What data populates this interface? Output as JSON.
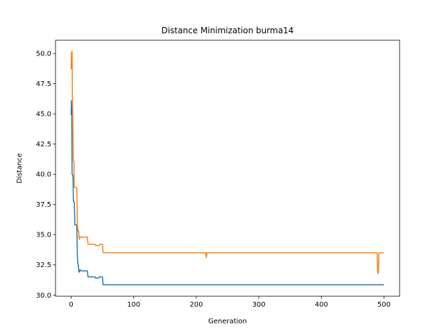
{
  "chart_data": {
    "type": "line",
    "title": "Distance Minimization burma14",
    "xlabel": "Generation",
    "ylabel": "Distance",
    "xlim": [
      -25,
      525
    ],
    "ylim": [
      29.9,
      51.1
    ],
    "x_ticks": [
      0,
      100,
      200,
      300,
      400,
      500
    ],
    "y_ticks": [
      30.0,
      32.5,
      35.0,
      37.5,
      40.0,
      42.5,
      45.0,
      47.5,
      50.0
    ],
    "grid": false,
    "legend": "none",
    "series": [
      {
        "color": "#1f77b4",
        "points": [
          [
            0,
            44.9
          ],
          [
            0.5,
            46.1
          ],
          [
            1,
            44.9
          ],
          [
            1.5,
            40.0
          ],
          [
            2,
            40.0
          ],
          [
            2.5,
            39.9
          ],
          [
            3,
            39.9
          ],
          [
            3.5,
            37.8
          ],
          [
            4,
            37.8
          ],
          [
            4.5,
            37.7
          ],
          [
            5,
            37.7
          ],
          [
            6,
            35.8
          ],
          [
            7,
            35.8
          ],
          [
            8,
            35.8
          ],
          [
            9,
            35.8
          ],
          [
            10,
            33.1
          ],
          [
            10.5,
            32.6
          ],
          [
            11,
            32.6
          ],
          [
            12,
            32.2
          ],
          [
            12.5,
            31.9
          ],
          [
            13,
            31.9
          ],
          [
            14,
            32.1
          ],
          [
            16,
            32.0
          ],
          [
            26,
            32.0
          ],
          [
            27,
            31.5
          ],
          [
            38,
            31.5
          ],
          [
            39,
            31.4
          ],
          [
            44,
            31.4
          ],
          [
            45,
            31.5
          ],
          [
            50,
            31.5
          ],
          [
            51,
            30.85
          ],
          [
            500,
            30.85
          ]
        ]
      },
      {
        "color": "#ff7f0e",
        "points": [
          [
            0,
            48.7
          ],
          [
            0.5,
            50.1
          ],
          [
            1,
            48.8
          ],
          [
            1.5,
            50.2
          ],
          [
            2,
            46.5
          ],
          [
            2.5,
            45.0
          ],
          [
            3,
            43.4
          ],
          [
            3.5,
            41.1
          ],
          [
            4,
            41.1
          ],
          [
            4.5,
            41.0
          ],
          [
            5,
            39.0
          ],
          [
            6,
            38.9
          ],
          [
            9,
            38.9
          ],
          [
            10,
            35.8
          ],
          [
            11,
            35.3
          ],
          [
            12,
            35.3
          ],
          [
            13,
            34.6
          ],
          [
            14,
            34.8
          ],
          [
            16,
            34.8
          ],
          [
            26,
            34.8
          ],
          [
            27,
            34.2
          ],
          [
            38,
            34.2
          ],
          [
            39,
            34.1
          ],
          [
            45,
            34.1
          ],
          [
            46,
            34.2
          ],
          [
            50,
            34.2
          ],
          [
            51,
            33.5
          ],
          [
            215,
            33.5
          ],
          [
            216,
            33.1
          ],
          [
            217,
            33.5
          ],
          [
            489,
            33.5
          ],
          [
            490,
            31.8
          ],
          [
            491,
            31.8
          ],
          [
            492,
            33.5
          ],
          [
            500,
            33.5
          ]
        ]
      }
    ]
  }
}
